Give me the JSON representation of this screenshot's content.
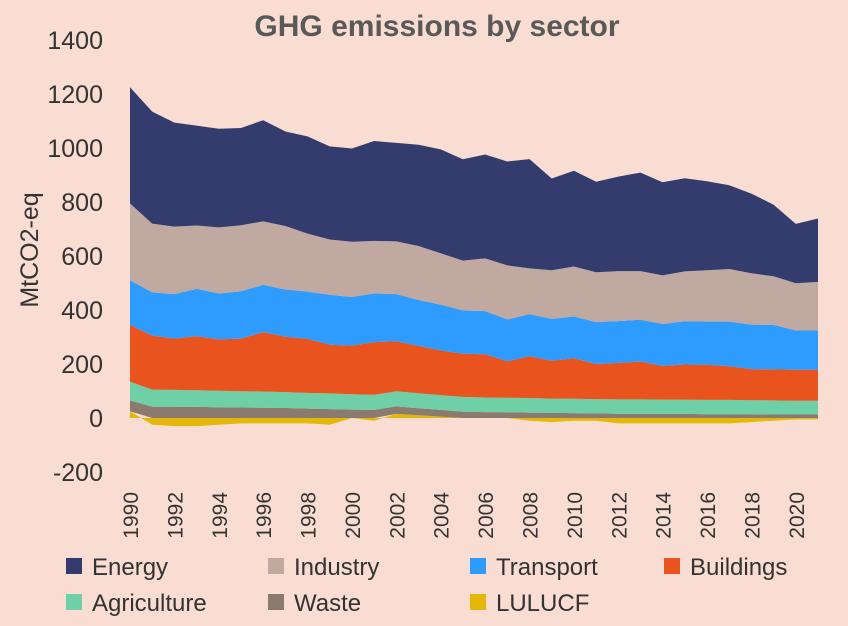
{
  "chart_data": {
    "type": "area",
    "stacked": true,
    "title": "GHG emissions by sector",
    "ylabel": "MtCO2-eq",
    "xlabel": "",
    "ylim": [
      -200,
      1400
    ],
    "yticks": [
      "-200",
      "0",
      "200",
      "400",
      "600",
      "800",
      "1000",
      "1200",
      "1400"
    ],
    "xticks": [
      "1990",
      "1992",
      "1994",
      "1996",
      "1998",
      "2000",
      "2002",
      "2004",
      "2006",
      "2008",
      "2010",
      "2012",
      "2014",
      "2016",
      "2018",
      "2020"
    ],
    "grid": false,
    "legend_position": "bottom",
    "x": [
      1990,
      1991,
      1992,
      1993,
      1994,
      1995,
      1996,
      1997,
      1998,
      1999,
      2000,
      2001,
      2002,
      2003,
      2004,
      2005,
      2006,
      2007,
      2008,
      2009,
      2010,
      2011,
      2012,
      2013,
      2014,
      2015,
      2016,
      2017,
      2018,
      2019,
      2020,
      2021
    ],
    "series": [
      {
        "name": "LULUCF",
        "color": "#E3B80A",
        "values": [
          25,
          -25,
          -30,
          -30,
          -25,
          -20,
          -20,
          -20,
          -20,
          -25,
          0,
          -10,
          15,
          10,
          5,
          0,
          0,
          0,
          -10,
          -15,
          -10,
          -10,
          -20,
          -20,
          -20,
          -20,
          -20,
          -20,
          -15,
          -10,
          -5,
          -5
        ]
      },
      {
        "name": "Waste",
        "color": "#8B7B6E",
        "values": [
          40,
          42,
          42,
          41,
          40,
          39,
          38,
          37,
          35,
          33,
          31,
          30,
          28,
          26,
          25,
          23,
          22,
          21,
          20,
          19,
          18,
          17,
          16,
          16,
          15,
          15,
          14,
          14,
          14,
          13,
          13,
          13
        ]
      },
      {
        "name": "Agriculture",
        "color": "#6FCFA7",
        "values": [
          70,
          63,
          62,
          62,
          61,
          60,
          60,
          59,
          58,
          58,
          57,
          56,
          56,
          56,
          55,
          55,
          54,
          54,
          54,
          53,
          53,
          53,
          53,
          53,
          53,
          53,
          53,
          53,
          52,
          52,
          51,
          51
        ]
      },
      {
        "name": "Buildings",
        "color": "#E8531E",
        "values": [
          210,
          200,
          190,
          200,
          190,
          195,
          220,
          205,
          200,
          180,
          180,
          195,
          185,
          175,
          165,
          160,
          160,
          135,
          155,
          140,
          150,
          130,
          135,
          140,
          125,
          130,
          130,
          125,
          115,
          115,
          115,
          115
        ]
      },
      {
        "name": "Transport",
        "color": "#2E9BFF",
        "values": [
          165,
          160,
          165,
          175,
          170,
          175,
          175,
          175,
          175,
          185,
          180,
          180,
          175,
          170,
          170,
          160,
          160,
          155,
          155,
          155,
          155,
          155,
          155,
          155,
          155,
          160,
          160,
          165,
          165,
          165,
          145,
          145
        ]
      },
      {
        "name": "Industry",
        "color": "#BFA9A1",
        "values": [
          285,
          255,
          250,
          235,
          245,
          245,
          235,
          235,
          215,
          205,
          205,
          195,
          195,
          200,
          190,
          185,
          195,
          200,
          170,
          180,
          185,
          185,
          185,
          180,
          180,
          185,
          190,
          195,
          190,
          180,
          175,
          180
        ]
      },
      {
        "name": "Energy",
        "color": "#343C6E",
        "values": [
          430,
          415,
          385,
          370,
          365,
          360,
          375,
          350,
          360,
          345,
          345,
          370,
          365,
          375,
          385,
          375,
          385,
          385,
          405,
          340,
          355,
          335,
          350,
          365,
          345,
          345,
          330,
          310,
          295,
          265,
          220,
          235
        ]
      }
    ],
    "legend": [
      {
        "name": "Energy",
        "color": "#343C6E"
      },
      {
        "name": "Industry",
        "color": "#BFA9A1"
      },
      {
        "name": "Transport",
        "color": "#2E9BFF"
      },
      {
        "name": "Buildings",
        "color": "#E8531E"
      },
      {
        "name": "Agriculture",
        "color": "#6FCFA7"
      },
      {
        "name": "Waste",
        "color": "#8B7B6E"
      },
      {
        "name": "LULUCF",
        "color": "#E3B80A"
      }
    ]
  },
  "colors": {
    "background": "#FADDD2",
    "text": "#333333",
    "title": "#595959"
  }
}
